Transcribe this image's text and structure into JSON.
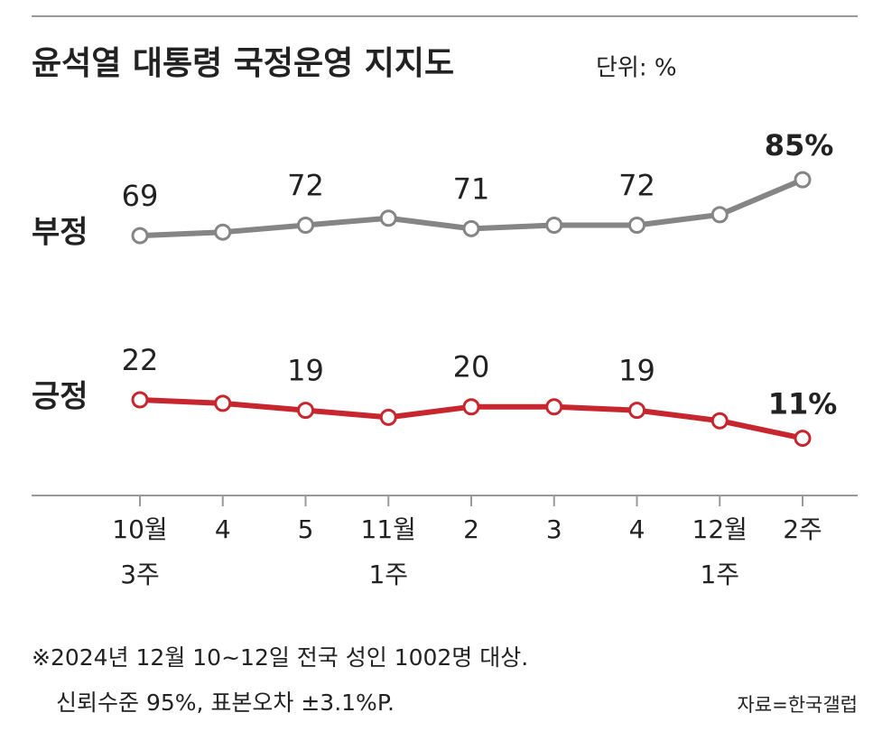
{
  "chart_data": {
    "type": "line",
    "title": "윤석열 대통령 국정운영 지지도",
    "unit": "단위: %",
    "categories": [
      "10월\n3주",
      "4",
      "5",
      "11월\n1주",
      "2",
      "3",
      "4",
      "12월\n1주",
      "2주"
    ],
    "series": [
      {
        "name": "부정",
        "color": "#858585",
        "values": [
          69,
          70,
          72,
          74,
          71,
          72,
          72,
          75,
          85
        ],
        "value_labels": [
          "69",
          null,
          "72",
          null,
          "71",
          null,
          "72",
          null,
          "85%"
        ]
      },
      {
        "name": "긍정",
        "color": "#c8262e",
        "values": [
          22,
          21,
          19,
          17,
          20,
          20,
          19,
          16,
          11
        ],
        "value_labels": [
          "22",
          null,
          "19",
          null,
          "20",
          null,
          "19",
          null,
          "11%"
        ]
      }
    ],
    "ylim": [
      5,
      90
    ],
    "notes": [
      "※2024년 12월 10~12일 전국 성인 1002명 대상.",
      "신뢰수준 95%, 표본오차 ±3.1%P."
    ],
    "source": "자료=한국갤럽"
  }
}
